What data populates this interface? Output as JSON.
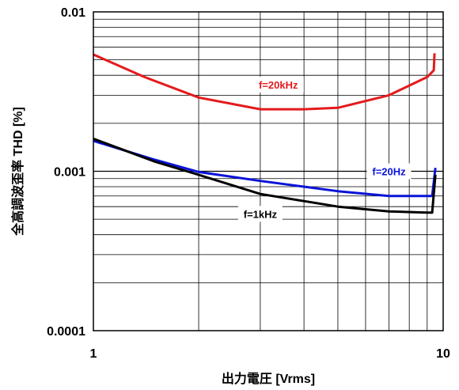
{
  "chart_data": {
    "type": "line",
    "title": "",
    "xlabel": "出力電圧 [Vrms]",
    "ylabel": "全高調波歪率 THD [%]",
    "x_scale": "log",
    "y_scale": "log",
    "xlim": [
      1,
      10
    ],
    "ylim": [
      0.0001,
      0.01
    ],
    "grid": true,
    "x_tick_labels": [
      "1",
      "10"
    ],
    "y_tick_labels": [
      "0.01",
      "0.001",
      "0.0001"
    ],
    "series": [
      {
        "name": "f=20kHz",
        "color": "#e41a1c",
        "x": [
          1.0,
          1.4,
          2.0,
          3.0,
          4.0,
          5.0,
          7.0,
          9.0,
          9.4,
          9.45
        ],
        "y": [
          0.0054,
          0.0039,
          0.0029,
          0.00245,
          0.00245,
          0.0025,
          0.003,
          0.0039,
          0.0043,
          0.0055
        ]
      },
      {
        "name": "f=20Hz",
        "color": "#0a14d8",
        "x": [
          1.0,
          1.5,
          2.0,
          3.0,
          4.0,
          5.0,
          7.0,
          9.0,
          9.3,
          9.5
        ],
        "y": [
          0.00155,
          0.00118,
          0.00099,
          0.00087,
          0.0008,
          0.00075,
          0.0007,
          0.0007,
          0.0007,
          0.00105
        ]
      },
      {
        "name": "f=1kHz",
        "color": "#000000",
        "x": [
          1.0,
          1.5,
          2.0,
          3.0,
          4.0,
          5.0,
          7.0,
          9.0,
          9.3,
          9.5
        ],
        "y": [
          0.0016,
          0.00115,
          0.00095,
          0.00072,
          0.00065,
          0.0006,
          0.00056,
          0.00055,
          0.00055,
          0.00095
        ]
      }
    ]
  }
}
